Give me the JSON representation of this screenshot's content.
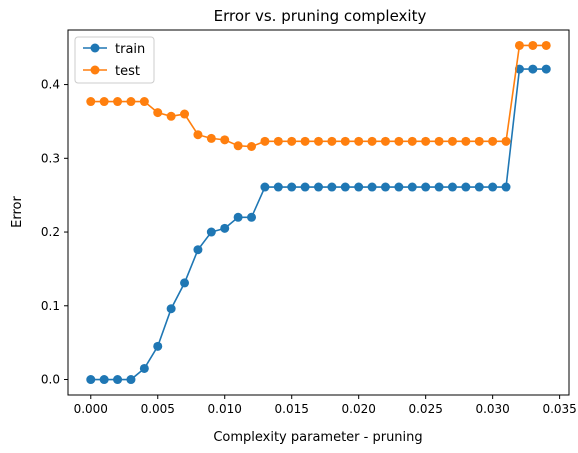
{
  "chart_data": {
    "type": "line",
    "title": "Error vs. pruning complexity",
    "xlabel": "Complexity parameter - pruning",
    "ylabel": "Error",
    "xlim": [
      -0.0017,
      0.0357
    ],
    "ylim": [
      -0.021,
      0.474
    ],
    "x_ticks": [
      0.0,
      0.005,
      0.01,
      0.015,
      0.02,
      0.025,
      0.03,
      0.035
    ],
    "x_tick_labels": [
      "0.000",
      "0.005",
      "0.010",
      "0.015",
      "0.020",
      "0.025",
      "0.030",
      "0.035"
    ],
    "y_ticks": [
      0.0,
      0.1,
      0.2,
      0.3,
      0.4
    ],
    "y_tick_labels": [
      "0.0",
      "0.1",
      "0.2",
      "0.3",
      "0.4"
    ],
    "grid": false,
    "legend_position": "top-left",
    "x": [
      0.0,
      0.001,
      0.002,
      0.003,
      0.004,
      0.005,
      0.006,
      0.007,
      0.008,
      0.009,
      0.01,
      0.011,
      0.012,
      0.013,
      0.014,
      0.015,
      0.016,
      0.017,
      0.018,
      0.019,
      0.02,
      0.021,
      0.022,
      0.023,
      0.024,
      0.025,
      0.026,
      0.027,
      0.028,
      0.029,
      0.03,
      0.031,
      0.032,
      0.033,
      0.034
    ],
    "series": [
      {
        "name": "train",
        "color": "#1f77b4",
        "values": [
          0.0,
          0.0,
          0.0,
          0.0,
          0.015,
          0.045,
          0.096,
          0.131,
          0.176,
          0.2,
          0.205,
          0.22,
          0.22,
          0.261,
          0.261,
          0.261,
          0.261,
          0.261,
          0.261,
          0.261,
          0.261,
          0.261,
          0.261,
          0.261,
          0.261,
          0.261,
          0.261,
          0.261,
          0.261,
          0.261,
          0.261,
          0.261,
          0.421,
          0.421,
          0.421
        ]
      },
      {
        "name": "test",
        "color": "#ff7f0e",
        "values": [
          0.377,
          0.377,
          0.377,
          0.377,
          0.377,
          0.362,
          0.357,
          0.36,
          0.332,
          0.327,
          0.325,
          0.317,
          0.316,
          0.323,
          0.323,
          0.323,
          0.323,
          0.323,
          0.323,
          0.323,
          0.323,
          0.323,
          0.323,
          0.323,
          0.323,
          0.323,
          0.323,
          0.323,
          0.323,
          0.323,
          0.323,
          0.323,
          0.453,
          0.453,
          0.453
        ]
      }
    ]
  }
}
